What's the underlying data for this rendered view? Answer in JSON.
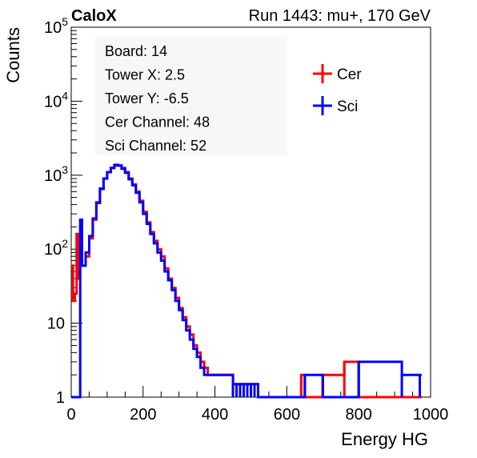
{
  "header": {
    "brand": "CaloX",
    "run_info": "Run 1443: mu+, 170 GeV"
  },
  "info_box": {
    "lines": [
      "Board: 14",
      "Tower X: 2.5",
      "Tower Y: -6.5",
      "Cer Channel: 48",
      "Sci Channel: 52"
    ]
  },
  "colors": {
    "cer": "#ff0000",
    "sci": "#0000ff",
    "axis": "#000000"
  },
  "chart_data": {
    "type": "line",
    "xlabel": "Energy HG",
    "ylabel": "Counts",
    "xlim": [
      0,
      1000
    ],
    "ylim": [
      1,
      100000
    ],
    "log_y": true,
    "grid": false,
    "legend_position": "top-right",
    "x_ticks": [
      0,
      200,
      400,
      600,
      800,
      1000
    ],
    "y_ticks": [
      {
        "value": 1,
        "base": "1",
        "exp": ""
      },
      {
        "value": 10,
        "base": "10",
        "exp": ""
      },
      {
        "value": 100,
        "base": "10",
        "exp": "2"
      },
      {
        "value": 1000,
        "base": "10",
        "exp": "3"
      },
      {
        "value": 10000,
        "base": "10",
        "exp": "4"
      },
      {
        "value": 100000,
        "base": "10",
        "exp": "5"
      }
    ],
    "x": [
      0,
      5,
      10,
      15,
      20,
      25,
      30,
      40,
      50,
      60,
      70,
      80,
      90,
      100,
      110,
      120,
      130,
      140,
      150,
      160,
      170,
      180,
      190,
      200,
      210,
      220,
      230,
      240,
      250,
      260,
      270,
      280,
      290,
      300,
      310,
      320,
      330,
      340,
      350,
      360,
      370,
      380,
      390,
      400,
      410,
      420,
      430,
      440,
      450,
      460,
      470,
      480,
      490,
      500,
      510,
      520,
      530,
      540,
      550,
      560,
      580,
      600,
      620,
      640,
      650,
      700,
      760,
      800,
      920,
      970
    ],
    "series": [
      {
        "name": "Cer",
        "values": [
          60,
          20,
          25,
          160,
          40,
          60,
          60,
          80,
          140,
          250,
          420,
          650,
          900,
          1100,
          1250,
          1350,
          1350,
          1250,
          1100,
          900,
          750,
          600,
          450,
          320,
          230,
          170,
          130,
          100,
          80,
          55,
          40,
          30,
          22,
          16,
          12,
          9,
          7,
          5,
          4,
          3,
          2.5,
          2,
          2,
          2,
          2,
          2,
          2,
          2,
          1.5,
          1.5,
          1.5,
          1.5,
          1.5,
          1.5,
          1.5,
          1,
          1,
          1,
          1,
          1,
          1,
          1,
          1,
          2,
          1,
          2,
          3,
          1,
          1,
          1
        ]
      },
      {
        "name": "Sci",
        "values": [
          1,
          1,
          1,
          1,
          1,
          250,
          60,
          90,
          150,
          260,
          430,
          660,
          900,
          1100,
          1250,
          1380,
          1350,
          1220,
          1080,
          880,
          730,
          580,
          430,
          300,
          220,
          160,
          120,
          90,
          70,
          50,
          38,
          28,
          20,
          15,
          11,
          8,
          6,
          4.5,
          3.5,
          2.5,
          2,
          2,
          2,
          2,
          2,
          2,
          2,
          2,
          1.5,
          1.5,
          1.5,
          1.5,
          1.5,
          1.5,
          1.5,
          1,
          1,
          1,
          1,
          1,
          1,
          1,
          1,
          1,
          2,
          1,
          1,
          3,
          2,
          2
        ]
      }
    ]
  }
}
